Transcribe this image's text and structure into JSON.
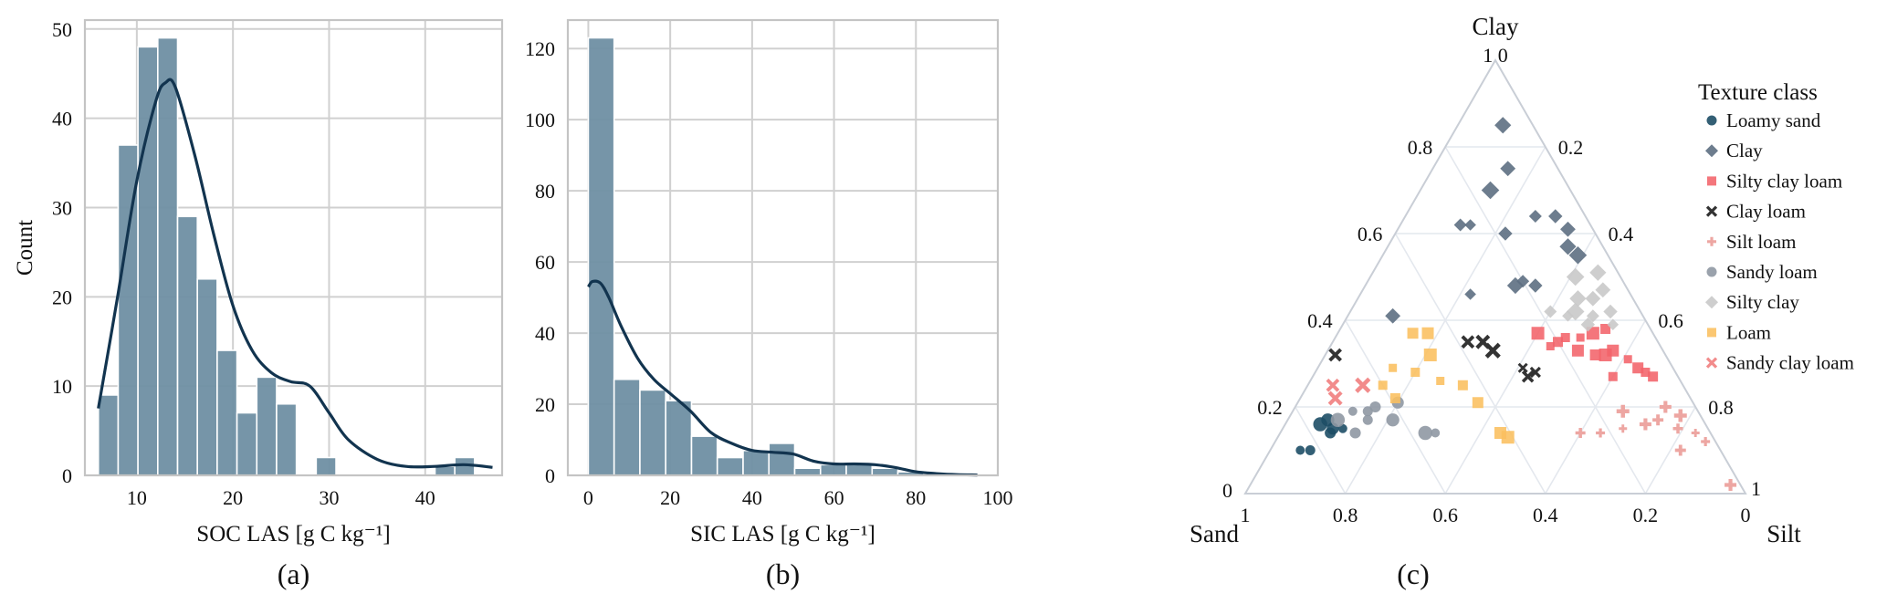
{
  "chart_data": [
    {
      "type": "histogram",
      "panel_label": "(a)",
      "xlabel": "SOC LAS [g C kg⁻¹]",
      "ylabel": "Count",
      "xlim": [
        4.6,
        48
      ],
      "ylim": [
        0,
        51
      ],
      "xticks": [
        10,
        20,
        30,
        40
      ],
      "yticks": [
        0,
        10,
        20,
        30,
        40,
        50
      ],
      "grid": true,
      "bar_color": "#6f8fa3",
      "kde_color": "#12344f",
      "bins": [
        {
          "x0": 6.0,
          "x1": 8.06,
          "count": 9
        },
        {
          "x0": 8.06,
          "x1": 10.12,
          "count": 37
        },
        {
          "x0": 10.12,
          "x1": 12.18,
          "count": 48
        },
        {
          "x0": 12.18,
          "x1": 14.24,
          "count": 49
        },
        {
          "x0": 14.24,
          "x1": 16.3,
          "count": 29
        },
        {
          "x0": 16.3,
          "x1": 18.36,
          "count": 22
        },
        {
          "x0": 18.36,
          "x1": 20.42,
          "count": 14
        },
        {
          "x0": 20.42,
          "x1": 22.48,
          "count": 7
        },
        {
          "x0": 22.48,
          "x1": 24.54,
          "count": 11
        },
        {
          "x0": 24.54,
          "x1": 26.6,
          "count": 8
        },
        {
          "x0": 26.6,
          "x1": 28.66,
          "count": 0
        },
        {
          "x0": 28.66,
          "x1": 30.72,
          "count": 2
        },
        {
          "x0": 30.72,
          "x1": 32.78,
          "count": 0
        },
        {
          "x0": 32.78,
          "x1": 34.84,
          "count": 0
        },
        {
          "x0": 34.84,
          "x1": 36.9,
          "count": 0
        },
        {
          "x0": 36.9,
          "x1": 38.96,
          "count": 0
        },
        {
          "x0": 38.96,
          "x1": 41.02,
          "count": 0
        },
        {
          "x0": 41.02,
          "x1": 43.08,
          "count": 1
        },
        {
          "x0": 43.08,
          "x1": 45.14,
          "count": 2
        }
      ],
      "kde": [
        [
          6,
          7.5
        ],
        [
          8,
          20
        ],
        [
          10,
          33
        ],
        [
          12,
          42
        ],
        [
          13,
          44
        ],
        [
          14,
          43.5
        ],
        [
          16,
          36
        ],
        [
          18,
          27
        ],
        [
          20,
          19
        ],
        [
          22,
          14
        ],
        [
          24,
          11.5
        ],
        [
          26,
          10.5
        ],
        [
          28,
          10
        ],
        [
          30,
          7
        ],
        [
          32,
          4
        ],
        [
          35,
          1.8
        ],
        [
          38,
          1.0
        ],
        [
          41,
          1.0
        ],
        [
          44,
          1.2
        ],
        [
          47,
          0.9
        ]
      ]
    },
    {
      "type": "histogram",
      "panel_label": "(b)",
      "xlabel": "SIC LAS [g C kg⁻¹]",
      "ylabel": "",
      "xlim": [
        -5,
        100
      ],
      "ylim": [
        0,
        128
      ],
      "xticks": [
        0,
        20,
        40,
        60,
        80,
        100
      ],
      "yticks": [
        0,
        20,
        40,
        60,
        80,
        100,
        120
      ],
      "grid": true,
      "bar_color": "#6f8fa3",
      "kde_color": "#12344f",
      "bins": [
        {
          "x0": 0,
          "x1": 6.3,
          "count": 123
        },
        {
          "x0": 6.3,
          "x1": 12.6,
          "count": 27
        },
        {
          "x0": 12.6,
          "x1": 18.9,
          "count": 24
        },
        {
          "x0": 18.9,
          "x1": 25.2,
          "count": 21
        },
        {
          "x0": 25.2,
          "x1": 31.5,
          "count": 11
        },
        {
          "x0": 31.5,
          "x1": 37.8,
          "count": 5
        },
        {
          "x0": 37.8,
          "x1": 44.1,
          "count": 7
        },
        {
          "x0": 44.1,
          "x1": 50.4,
          "count": 9
        },
        {
          "x0": 50.4,
          "x1": 56.7,
          "count": 2
        },
        {
          "x0": 56.7,
          "x1": 63.0,
          "count": 3
        },
        {
          "x0": 63.0,
          "x1": 69.3,
          "count": 3
        },
        {
          "x0": 69.3,
          "x1": 75.6,
          "count": 2
        },
        {
          "x0": 75.6,
          "x1": 81.9,
          "count": 1
        }
      ],
      "kde": [
        [
          0,
          53
        ],
        [
          1,
          54.5
        ],
        [
          3,
          54
        ],
        [
          5,
          50
        ],
        [
          8,
          42
        ],
        [
          12,
          33
        ],
        [
          16,
          27
        ],
        [
          20,
          23
        ],
        [
          25,
          18
        ],
        [
          30,
          12
        ],
        [
          35,
          9
        ],
        [
          40,
          7
        ],
        [
          45,
          6.5
        ],
        [
          50,
          6
        ],
        [
          55,
          4
        ],
        [
          60,
          3.2
        ],
        [
          65,
          3.2
        ],
        [
          70,
          3
        ],
        [
          75,
          2.2
        ],
        [
          80,
          1
        ],
        [
          85,
          0.5
        ],
        [
          90,
          0.2
        ],
        [
          95,
          0.1
        ]
      ]
    },
    {
      "type": "ternary_scatter",
      "panel_label": "(c)",
      "corner_labels": {
        "top": "Clay",
        "left": "Sand",
        "right": "Silt"
      },
      "tick_values": [
        "0.2",
        "0.4",
        "0.6",
        "0.8"
      ],
      "corner_tick_labels": {
        "clay_top": "1 0",
        "clay_zero": "0",
        "silt_one": "1",
        "sand_one": "1",
        "silt_zero": "0"
      },
      "legend": {
        "title": "Texture class",
        "placement": "right",
        "entries": [
          {
            "name": "Loamy sand",
            "marker": "circle",
            "color": "#1d4e66"
          },
          {
            "name": "Clay",
            "marker": "diamond",
            "color": "#5d6f82"
          },
          {
            "name": "Silty clay loam",
            "marker": "square",
            "color": "#f2636a"
          },
          {
            "name": "Clay loam",
            "marker": "x",
            "color": "#333333"
          },
          {
            "name": "Silt loam",
            "marker": "plus",
            "color": "#eda6a2"
          },
          {
            "name": "Sandy loam",
            "marker": "circle",
            "color": "#8f98a3"
          },
          {
            "name": "Silty clay",
            "marker": "diamond",
            "color": "#c9c9c9"
          },
          {
            "name": "Loam",
            "marker": "square",
            "color": "#fbbf5e"
          },
          {
            "name": "Sandy clay loam",
            "marker": "x",
            "color": "#f28b8b"
          }
        ]
      },
      "points": [
        {
          "cls": 0,
          "sand": 0.84,
          "silt": 0.06,
          "clay": 0.1
        },
        {
          "cls": 0,
          "sand": 0.82,
          "silt": 0.08,
          "clay": 0.1
        },
        {
          "cls": 0,
          "sand": 0.76,
          "silt": 0.1,
          "clay": 0.14
        },
        {
          "cls": 0,
          "sand": 0.75,
          "silt": 0.1,
          "clay": 0.15
        },
        {
          "cls": 0,
          "sand": 0.75,
          "silt": 0.08,
          "clay": 0.17
        },
        {
          "cls": 0,
          "sand": 0.77,
          "silt": 0.07,
          "clay": 0.16
        },
        {
          "cls": 0,
          "sand": 0.73,
          "silt": 0.12,
          "clay": 0.15
        },
        {
          "cls": 1,
          "sand": 0.1,
          "silt": 0.26,
          "clay": 0.64
        },
        {
          "cls": 1,
          "sand": 0.06,
          "silt": 0.3,
          "clay": 0.64
        },
        {
          "cls": 1,
          "sand": 0.05,
          "silt": 0.34,
          "clay": 0.61
        },
        {
          "cls": 1,
          "sand": 0.07,
          "silt": 0.36,
          "clay": 0.57
        },
        {
          "cls": 1,
          "sand": 0.06,
          "silt": 0.39,
          "clay": 0.55
        },
        {
          "cls": 1,
          "sand": 0.24,
          "silt": 0.14,
          "clay": 0.62
        },
        {
          "cls": 1,
          "sand": 0.26,
          "silt": 0.12,
          "clay": 0.62
        },
        {
          "cls": 1,
          "sand": 0.18,
          "silt": 0.22,
          "clay": 0.6
        },
        {
          "cls": 1,
          "sand": 0.1,
          "silt": 0.15,
          "clay": 0.75
        },
        {
          "cls": 1,
          "sand": 0.06,
          "silt": 0.09,
          "clay": 0.85
        },
        {
          "cls": 1,
          "sand": 0.16,
          "silt": 0.14,
          "clay": 0.7
        },
        {
          "cls": 1,
          "sand": 0.32,
          "silt": 0.22,
          "clay": 0.46
        },
        {
          "cls": 1,
          "sand": 0.2,
          "silt": 0.31,
          "clay": 0.49
        },
        {
          "cls": 1,
          "sand": 0.18,
          "silt": 0.34,
          "clay": 0.48
        },
        {
          "cls": 1,
          "sand": 0.5,
          "silt": 0.09,
          "clay": 0.41
        },
        {
          "cls": 1,
          "sand": 0.22,
          "silt": 0.3,
          "clay": 0.48
        },
        {
          "cls": 2,
          "sand": 0.12,
          "silt": 0.51,
          "clay": 0.37
        },
        {
          "cls": 2,
          "sand": 0.15,
          "silt": 0.49,
          "clay": 0.36
        },
        {
          "cls": 2,
          "sand": 0.18,
          "silt": 0.46,
          "clay": 0.36
        },
        {
          "cls": 2,
          "sand": 0.2,
          "silt": 0.45,
          "clay": 0.35
        },
        {
          "cls": 2,
          "sand": 0.14,
          "silt": 0.54,
          "clay": 0.32
        },
        {
          "cls": 2,
          "sand": 0.1,
          "silt": 0.57,
          "clay": 0.33
        },
        {
          "cls": 2,
          "sand": 0.12,
          "silt": 0.56,
          "clay": 0.32
        },
        {
          "cls": 2,
          "sand": 0.08,
          "silt": 0.61,
          "clay": 0.31
        },
        {
          "cls": 2,
          "sand": 0.06,
          "silt": 0.66,
          "clay": 0.28
        },
        {
          "cls": 2,
          "sand": 0.05,
          "silt": 0.68,
          "clay": 0.27
        },
        {
          "cls": 2,
          "sand": 0.07,
          "silt": 0.64,
          "clay": 0.29
        },
        {
          "cls": 2,
          "sand": 0.17,
          "silt": 0.5,
          "clay": 0.33
        },
        {
          "cls": 2,
          "sand": 0.23,
          "silt": 0.4,
          "clay": 0.37
        },
        {
          "cls": 2,
          "sand": 0.22,
          "silt": 0.44,
          "clay": 0.34
        },
        {
          "cls": 2,
          "sand": 0.13,
          "silt": 0.6,
          "clay": 0.27
        },
        {
          "cls": 2,
          "sand": 0.09,
          "silt": 0.53,
          "clay": 0.38
        },
        {
          "cls": 3,
          "sand": 0.38,
          "silt": 0.27,
          "clay": 0.35
        },
        {
          "cls": 3,
          "sand": 0.35,
          "silt": 0.3,
          "clay": 0.35
        },
        {
          "cls": 3,
          "sand": 0.34,
          "silt": 0.33,
          "clay": 0.33
        },
        {
          "cls": 3,
          "sand": 0.3,
          "silt": 0.41,
          "clay": 0.29
        },
        {
          "cls": 3,
          "sand": 0.28,
          "silt": 0.44,
          "clay": 0.28
        },
        {
          "cls": 3,
          "sand": 0.3,
          "silt": 0.43,
          "clay": 0.27
        },
        {
          "cls": 3,
          "sand": 0.66,
          "silt": 0.02,
          "clay": 0.32
        },
        {
          "cls": 4,
          "sand": 0.06,
          "silt": 0.74,
          "clay": 0.2
        },
        {
          "cls": 4,
          "sand": 0.04,
          "silt": 0.78,
          "clay": 0.18
        },
        {
          "cls": 4,
          "sand": 0.03,
          "silt": 0.83,
          "clay": 0.14
        },
        {
          "cls": 4,
          "sand": 0.02,
          "silt": 0.86,
          "clay": 0.12
        },
        {
          "cls": 4,
          "sand": 0.06,
          "silt": 0.79,
          "clay": 0.15
        },
        {
          "cls": 4,
          "sand": 0.09,
          "silt": 0.74,
          "clay": 0.17
        },
        {
          "cls": 4,
          "sand": 0.12,
          "silt": 0.72,
          "clay": 0.16
        },
        {
          "cls": 4,
          "sand": 0.15,
          "silt": 0.66,
          "clay": 0.19
        },
        {
          "cls": 4,
          "sand": 0.17,
          "silt": 0.68,
          "clay": 0.15
        },
        {
          "cls": 4,
          "sand": 0.22,
          "silt": 0.64,
          "clay": 0.14
        },
        {
          "cls": 4,
          "sand": 0.26,
          "silt": 0.6,
          "clay": 0.14
        },
        {
          "cls": 4,
          "sand": 0.08,
          "silt": 0.82,
          "clay": 0.1
        },
        {
          "cls": 4,
          "sand": 0.02,
          "silt": 0.96,
          "clay": 0.02
        },
        {
          "cls": 5,
          "sand": 0.73,
          "silt": 0.1,
          "clay": 0.17
        },
        {
          "cls": 5,
          "sand": 0.69,
          "silt": 0.12,
          "clay": 0.19
        },
        {
          "cls": 5,
          "sand": 0.66,
          "silt": 0.15,
          "clay": 0.19
        },
        {
          "cls": 5,
          "sand": 0.64,
          "silt": 0.16,
          "clay": 0.2
        },
        {
          "cls": 5,
          "sand": 0.59,
          "silt": 0.2,
          "clay": 0.21
        },
        {
          "cls": 5,
          "sand": 0.62,
          "silt": 0.21,
          "clay": 0.17
        },
        {
          "cls": 5,
          "sand": 0.57,
          "silt": 0.29,
          "clay": 0.14
        },
        {
          "cls": 5,
          "sand": 0.55,
          "silt": 0.31,
          "clay": 0.14
        },
        {
          "cls": 5,
          "sand": 0.67,
          "silt": 0.16,
          "clay": 0.17
        },
        {
          "cls": 5,
          "sand": 0.71,
          "silt": 0.15,
          "clay": 0.14
        },
        {
          "cls": 6,
          "sand": 0.08,
          "silt": 0.47,
          "clay": 0.45
        },
        {
          "cls": 6,
          "sand": 0.11,
          "silt": 0.44,
          "clay": 0.45
        },
        {
          "cls": 6,
          "sand": 0.13,
          "silt": 0.45,
          "clay": 0.42
        },
        {
          "cls": 6,
          "sand": 0.15,
          "silt": 0.44,
          "clay": 0.41
        },
        {
          "cls": 6,
          "sand": 0.1,
          "silt": 0.49,
          "clay": 0.41
        },
        {
          "cls": 6,
          "sand": 0.06,
          "silt": 0.52,
          "clay": 0.42
        },
        {
          "cls": 6,
          "sand": 0.05,
          "silt": 0.48,
          "clay": 0.47
        },
        {
          "cls": 6,
          "sand": 0.04,
          "silt": 0.45,
          "clay": 0.51
        },
        {
          "cls": 6,
          "sand": 0.09,
          "silt": 0.41,
          "clay": 0.5
        },
        {
          "cls": 6,
          "sand": 0.07,
          "silt": 0.54,
          "clay": 0.39
        },
        {
          "cls": 6,
          "sand": 0.18,
          "silt": 0.4,
          "clay": 0.42
        },
        {
          "cls": 6,
          "sand": 0.12,
          "silt": 0.49,
          "clay": 0.39
        },
        {
          "cls": 7,
          "sand": 0.48,
          "silt": 0.15,
          "clay": 0.37
        },
        {
          "cls": 7,
          "sand": 0.45,
          "silt": 0.18,
          "clay": 0.37
        },
        {
          "cls": 7,
          "sand": 0.47,
          "silt": 0.21,
          "clay": 0.32
        },
        {
          "cls": 7,
          "sand": 0.48,
          "silt": 0.26,
          "clay": 0.26
        },
        {
          "cls": 7,
          "sand": 0.52,
          "silt": 0.2,
          "clay": 0.28
        },
        {
          "cls": 7,
          "sand": 0.44,
          "silt": 0.31,
          "clay": 0.25
        },
        {
          "cls": 7,
          "sand": 0.43,
          "silt": 0.36,
          "clay": 0.21
        },
        {
          "cls": 7,
          "sand": 0.42,
          "silt": 0.44,
          "clay": 0.14
        },
        {
          "cls": 7,
          "sand": 0.41,
          "silt": 0.46,
          "clay": 0.13
        },
        {
          "cls": 7,
          "sand": 0.56,
          "silt": 0.15,
          "clay": 0.29
        },
        {
          "cls": 7,
          "sand": 0.6,
          "silt": 0.15,
          "clay": 0.25
        },
        {
          "cls": 7,
          "sand": 0.59,
          "silt": 0.19,
          "clay": 0.22
        },
        {
          "cls": 8,
          "sand": 0.7,
          "silt": 0.05,
          "clay": 0.25
        },
        {
          "cls": 8,
          "sand": 0.71,
          "silt": 0.07,
          "clay": 0.22
        },
        {
          "cls": 8,
          "sand": 0.64,
          "silt": 0.11,
          "clay": 0.25
        }
      ]
    }
  ]
}
